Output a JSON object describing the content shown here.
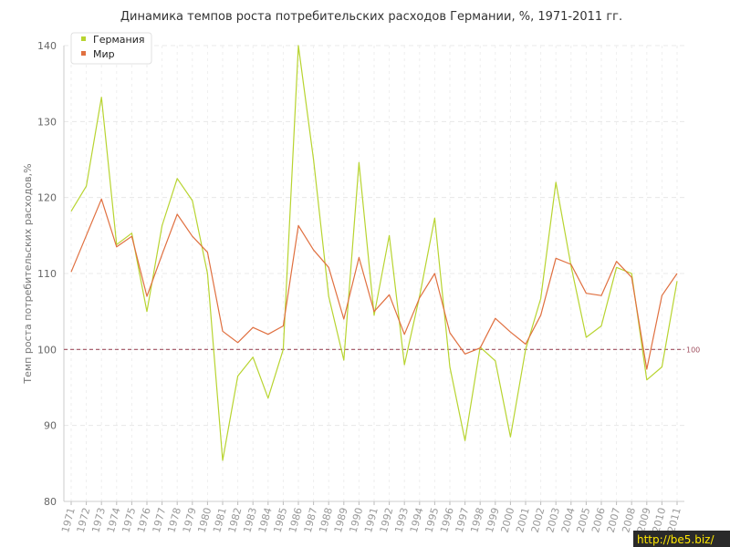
{
  "chart_data": {
    "type": "line",
    "title": "Динамика темпов роста потребительских расходов Германии, %, 1971-2011 гг.",
    "ylabel": "Темп роста потребительских расходов,%",
    "xlabel": "",
    "ylim": [
      80,
      140
    ],
    "yticks": [
      80,
      90,
      100,
      110,
      120,
      130,
      140
    ],
    "x": [
      "1971",
      "1972",
      "1973",
      "1974",
      "1975",
      "1976",
      "1977",
      "1978",
      "1979",
      "1980",
      "1981",
      "1982",
      "1983",
      "1984",
      "1985",
      "1986",
      "1987",
      "1988",
      "1989",
      "1990",
      "1991",
      "1992",
      "1993",
      "1994",
      "1995",
      "1996",
      "1997",
      "1998",
      "1999",
      "2000",
      "2001",
      "2002",
      "2003",
      "2004",
      "2005",
      "2006",
      "2007",
      "2008",
      "2009",
      "2010",
      "2011"
    ],
    "series": [
      {
        "name": "Германия",
        "color": "#b8d430",
        "values": [
          118.2,
          121.5,
          133.2,
          113.8,
          115.3,
          105.0,
          116.3,
          122.5,
          119.6,
          110.0,
          85.4,
          96.5,
          99.0,
          93.6,
          100.0,
          140.0,
          125.0,
          107.0,
          98.6,
          124.6,
          104.5,
          115.0,
          98.0,
          107.0,
          117.3,
          97.7,
          88.0,
          100.3,
          98.5,
          88.5,
          100.0,
          106.7,
          122.0,
          111.0,
          101.6,
          103.1,
          110.8,
          110.0,
          96.0,
          97.7,
          109.0
        ]
      },
      {
        "name": "Мир",
        "color": "#e07040",
        "values": [
          110.2,
          115.0,
          119.8,
          113.5,
          114.9,
          107.0,
          112.5,
          117.8,
          114.9,
          112.8,
          102.4,
          100.9,
          102.9,
          102.0,
          103.1,
          116.3,
          113.1,
          110.8,
          104.0,
          112.1,
          105.0,
          107.2,
          102.0,
          106.8,
          110.0,
          102.2,
          99.4,
          100.2,
          104.1,
          102.3,
          100.7,
          104.5,
          112.0,
          111.2,
          107.4,
          107.1,
          111.6,
          109.5,
          97.4,
          107.1,
          110.0
        ]
      }
    ],
    "reference_line": {
      "value": 100,
      "label": "100",
      "color": "#a05060"
    },
    "legend_position": "top-left",
    "grid": true
  },
  "watermark": {
    "text": "http://be5.biz/"
  }
}
